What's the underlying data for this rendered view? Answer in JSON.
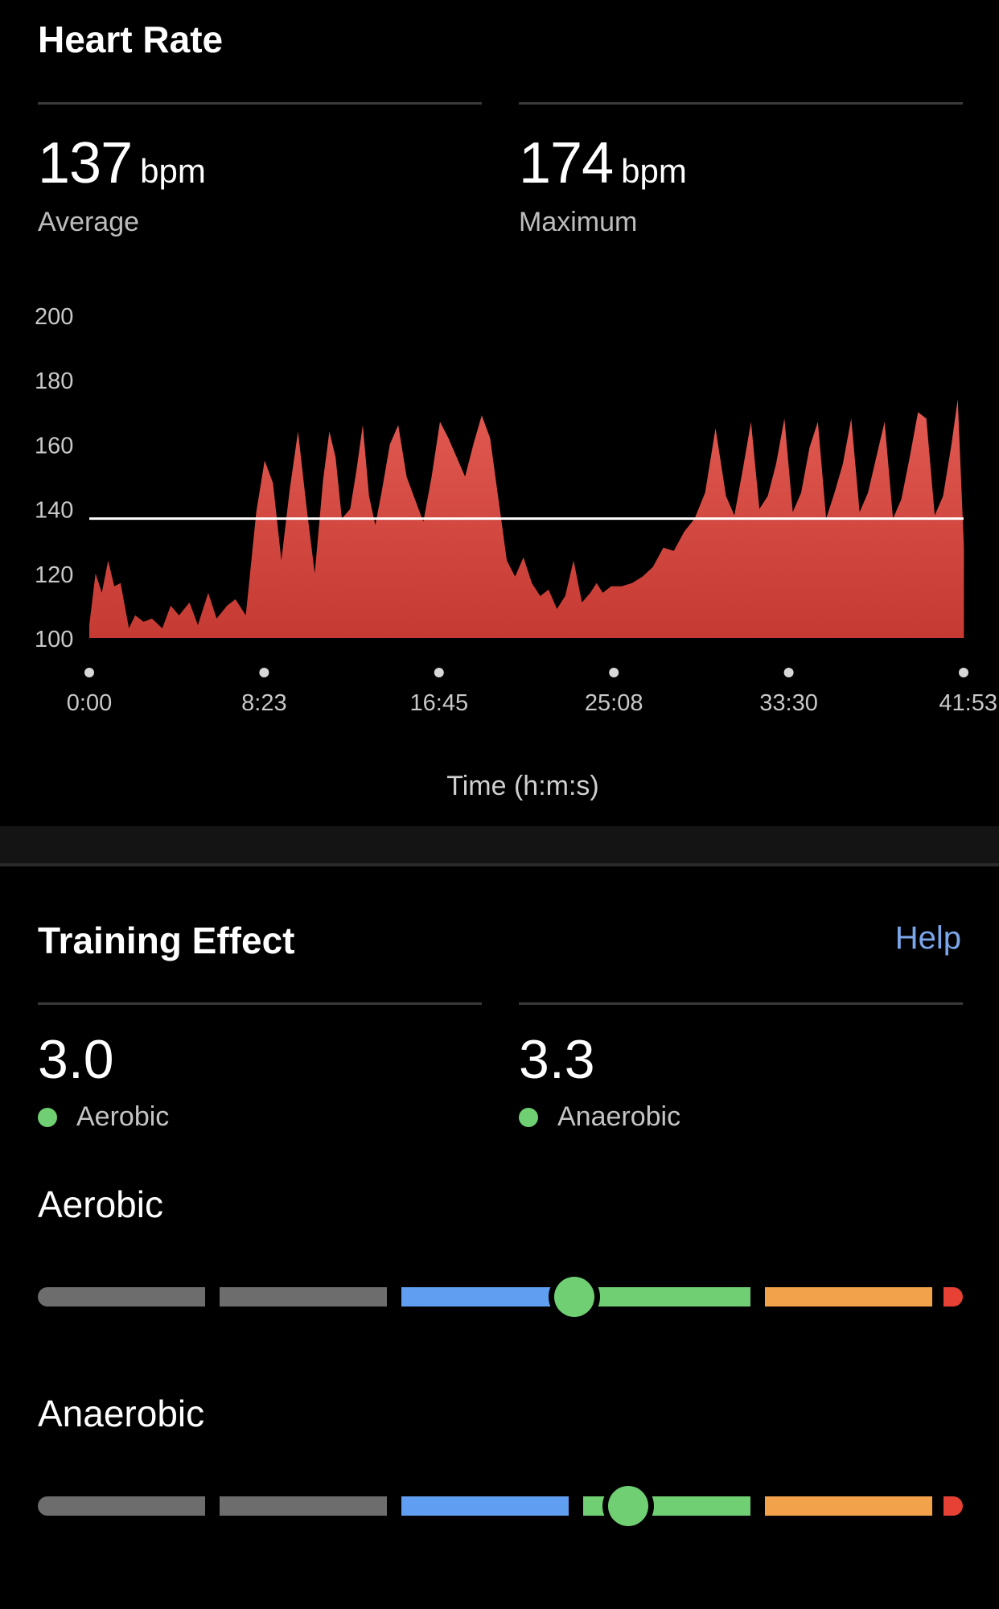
{
  "heart_rate": {
    "title": "Heart Rate",
    "average": {
      "value": "137",
      "unit": "bpm",
      "label": "Average"
    },
    "maximum": {
      "value": "174",
      "unit": "bpm",
      "label": "Maximum"
    },
    "xlabel": "Time (h:m:s)"
  },
  "chart_data": {
    "type": "area",
    "title": "",
    "xlabel": "Time (h:m:s)",
    "ylabel": "",
    "ylim": [
      100,
      200
    ],
    "yticks": [
      "200",
      "180",
      "160",
      "140",
      "120",
      "100"
    ],
    "xticks": [
      "0:00",
      "8:23",
      "16:45",
      "25:08",
      "33:30",
      "41:53"
    ],
    "reference_line": {
      "value": 137,
      "color": "#ffffff"
    },
    "fill_color_top": "#e25a52",
    "fill_color_bottom": "#c53a33",
    "series": [
      {
        "x_minutes": [
          0,
          0.3,
          0.6,
          0.9,
          1.2,
          1.5,
          1.9,
          2.2,
          2.6,
          3.0,
          3.5,
          3.9,
          4.3,
          4.8,
          5.2,
          5.7,
          6.1,
          6.6,
          7.0,
          7.5,
          8.0,
          8.4,
          8.8,
          9.2,
          9.6,
          10.0,
          10.4,
          10.8,
          11.2,
          11.5,
          11.8,
          12.1,
          12.5,
          12.8,
          13.1,
          13.4,
          13.7,
          14.0,
          14.4,
          14.8,
          15.2,
          15.6,
          16.0,
          16.4,
          16.8,
          17.2,
          17.6,
          18.0,
          18.4,
          18.8,
          19.2,
          19.6,
          20.0,
          20.4,
          20.8,
          21.2,
          21.6,
          22.0,
          22.4,
          22.8,
          23.2,
          23.6,
          24.0,
          24.3,
          24.6,
          25.0,
          25.5,
          26.0,
          26.5,
          27.0,
          27.5,
          28.0,
          28.5,
          29.0,
          29.5,
          30.0,
          30.5,
          30.9,
          31.3,
          31.7,
          32.1,
          32.5,
          32.9,
          33.3,
          33.7,
          34.1,
          34.5,
          34.9,
          35.3,
          35.7,
          36.1,
          36.5,
          36.9,
          37.3,
          37.7,
          38.1,
          38.5,
          38.9,
          39.3,
          39.7,
          40.1,
          40.5,
          40.9,
          41.3,
          41.6,
          41.9
        ],
        "y": [
          104,
          120,
          114,
          124,
          116,
          117,
          103,
          107,
          105,
          106,
          103,
          110,
          107,
          111,
          104,
          114,
          106,
          110,
          112,
          107,
          139,
          155,
          148,
          124,
          146,
          164,
          141,
          120,
          149,
          164,
          156,
          137,
          140,
          152,
          166,
          144,
          135,
          145,
          160,
          166,
          150,
          143,
          136,
          150,
          167,
          162,
          156,
          150,
          160,
          169,
          162,
          143,
          124,
          119,
          125,
          117,
          113,
          115,
          109,
          113,
          124,
          111,
          114,
          117,
          114,
          116,
          116,
          117,
          119,
          122,
          128,
          127,
          133,
          137,
          145,
          165,
          144,
          138,
          152,
          167,
          140,
          144,
          154,
          168,
          139,
          145,
          159,
          167,
          137,
          145,
          154,
          168,
          139,
          145,
          156,
          167,
          137,
          143,
          156,
          170,
          168,
          138,
          144,
          160,
          174,
          128
        ]
      }
    ]
  },
  "training_effect": {
    "title": "Training Effect",
    "help_label": "Help",
    "aerobic": {
      "value": "3.0",
      "label": "Aerobic",
      "dot_color": "#6fcf72"
    },
    "anaerobic": {
      "value": "3.3",
      "label": "Anaerobic",
      "dot_color": "#6fcf72"
    },
    "gauges": [
      {
        "title": "Aerobic",
        "level": 3.0
      },
      {
        "title": "Anaerobic",
        "level": 3.3
      }
    ],
    "gauge_scale": [
      0,
      5
    ],
    "gauge_colors": [
      "#6d6d6d",
      "#6d6d6d",
      "#5f9ef0",
      "#6fcf72",
      "#f2a24b",
      "#e64134"
    ],
    "knob_color": "#6fcf72"
  }
}
